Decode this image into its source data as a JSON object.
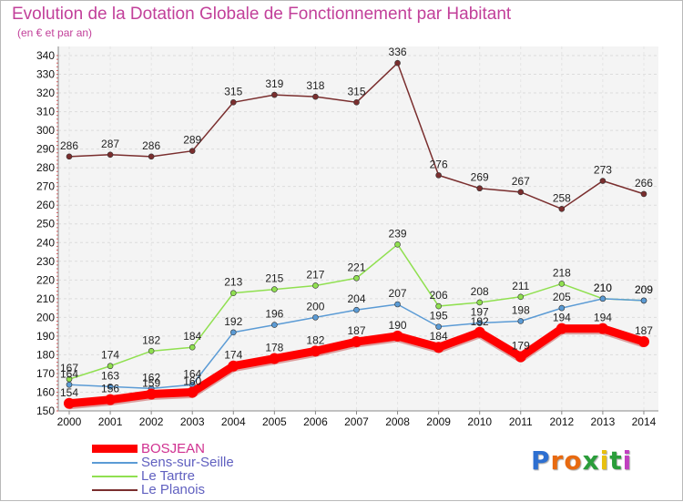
{
  "chart_data": {
    "type": "line",
    "title": "Evolution de la Dotation Globale de Fonctionnement par Habitant",
    "subtitle": "(en € et par an)",
    "x": [
      "2000",
      "2001",
      "2002",
      "2003",
      "2004",
      "2005",
      "2006",
      "2007",
      "2008",
      "2009",
      "2010",
      "2011",
      "2012",
      "2013",
      "2014"
    ],
    "ylim": [
      150,
      340
    ],
    "yticks": [
      150,
      160,
      170,
      180,
      190,
      200,
      210,
      220,
      230,
      240,
      250,
      260,
      270,
      280,
      290,
      300,
      310,
      320,
      330,
      340
    ],
    "grid": true,
    "legend_position": "bottom-left",
    "series": [
      {
        "name": "BOSJEAN",
        "color": "#ff0000",
        "values": [
          154,
          156,
          159,
          160,
          174,
          178,
          182,
          187,
          190,
          184,
          192,
          179,
          194,
          194,
          187
        ]
      },
      {
        "name": "Sens-sur-Seille",
        "color": "#5b9bd5",
        "values": [
          164,
          163,
          162,
          164,
          192,
          196,
          200,
          204,
          207,
          195,
          197,
          198,
          205,
          210,
          209
        ]
      },
      {
        "name": "Le Tartre",
        "color": "#90e050",
        "values": [
          167,
          174,
          182,
          184,
          213,
          215,
          217,
          221,
          239,
          206,
          208,
          211,
          218,
          210,
          209
        ]
      },
      {
        "name": "Le Planois",
        "color": "#7a2e2e",
        "values": [
          286,
          287,
          286,
          289,
          315,
          319,
          318,
          315,
          336,
          276,
          269,
          267,
          258,
          273,
          266
        ]
      }
    ]
  },
  "branding": {
    "logo_letters": [
      "P",
      "r",
      "o",
      "x",
      "i",
      "t",
      "i"
    ],
    "logo_colors": [
      "#2d6fd1",
      "#e86a10",
      "#e86a10",
      "#2a9d3a",
      "#e8c010",
      "#2a9d3a",
      "#c040c0"
    ]
  }
}
